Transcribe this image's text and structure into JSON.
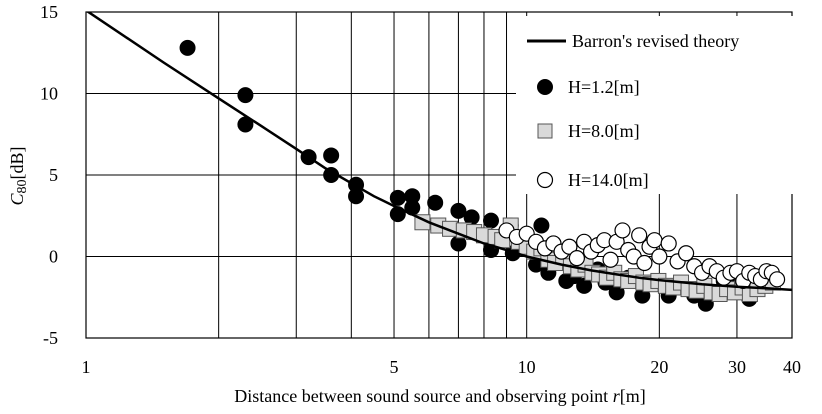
{
  "chart_data": {
    "type": "scatter",
    "xscale": "log",
    "xlim": [
      1,
      40
    ],
    "ylim": [
      -5,
      15
    ],
    "xticks": [
      1,
      5,
      10,
      20,
      30,
      40
    ],
    "xtick_labels": [
      "1",
      "5",
      "10",
      "20",
      "30",
      "40"
    ],
    "xgrid_values": [
      1,
      2,
      3,
      4,
      5,
      6,
      7,
      8,
      9,
      10,
      20,
      30,
      40
    ],
    "yticks": [
      -5,
      0,
      5,
      10,
      15
    ],
    "ytick_labels": [
      "-5",
      "0",
      "5",
      "10",
      "15"
    ],
    "xlabel": {
      "main": "Distance between sound source and observing point ",
      "var": "r",
      "unit": "[m]"
    },
    "ylabel": {
      "var": "C",
      "sub": "80",
      "unit": "[dB]"
    },
    "grid": true,
    "legend_position": "top-right",
    "series": [
      {
        "name": "Barron's revised theory",
        "marker": "line",
        "color": "#000000",
        "x": [
          1,
          1.5,
          2,
          2.5,
          3,
          3.5,
          4,
          4.5,
          5,
          6,
          7,
          8,
          9,
          10,
          12,
          14,
          16,
          18,
          20,
          25,
          30,
          35,
          40
        ],
        "y": [
          15.1,
          11.9,
          9.7,
          8.0,
          6.6,
          5.4,
          4.5,
          3.7,
          3.1,
          2.1,
          1.4,
          0.8,
          0.4,
          0.0,
          -0.5,
          -0.85,
          -1.1,
          -1.3,
          -1.45,
          -1.7,
          -1.85,
          -1.95,
          -2.05
        ]
      },
      {
        "name": "H=1.2[m]",
        "marker": "circle-filled",
        "color": "#000000",
        "x": [
          1.7,
          2.3,
          2.3,
          3.2,
          3.6,
          3.6,
          4.1,
          4.1,
          5.1,
          5.1,
          5.5,
          5.5,
          6.2,
          7.0,
          7.0,
          7.5,
          8.3,
          8.3,
          9.2,
          9.3,
          10.5,
          10.8,
          11.2,
          11.5,
          12.3,
          12.8,
          13.5,
          14.5,
          15.1,
          16.0,
          17.0,
          18.3,
          19.5,
          21.0,
          22.5,
          24.0,
          25.5,
          27.0,
          28.0,
          30.0,
          32.0,
          34.0
        ],
        "y": [
          12.8,
          9.9,
          8.1,
          6.1,
          6.2,
          5.0,
          4.4,
          3.7,
          3.6,
          2.6,
          3.7,
          3.0,
          3.3,
          2.8,
          0.8,
          2.4,
          2.2,
          0.4,
          1.9,
          0.2,
          -0.5,
          1.9,
          -1.0,
          0.8,
          -1.5,
          -1.2,
          -1.8,
          -0.8,
          -1.6,
          -2.2,
          -1.3,
          -2.4,
          -1.6,
          -2.4,
          -1.9,
          -2.4,
          -2.9,
          -2.2,
          -1.5,
          -1.7,
          -2.6,
          -1.7
        ]
      },
      {
        "name": "H=8.0[m]",
        "marker": "square",
        "color": "#d9d9d9",
        "x": [
          5.8,
          6.3,
          6.7,
          7.2,
          7.6,
          8.0,
          8.5,
          8.8,
          9.2,
          9.6,
          10.0,
          10.4,
          10.8,
          11.2,
          11.6,
          12.1,
          12.6,
          13.1,
          13.6,
          14.1,
          14.6,
          15.2,
          15.8,
          16.4,
          17.0,
          17.7,
          18.4,
          19.1,
          19.9,
          20.7,
          21.5,
          22.4,
          23.3,
          24.3,
          25.3,
          26.3,
          27.4,
          28.5,
          29.7,
          30.9,
          32.1,
          33.4,
          34.8,
          36.2
        ],
        "y": [
          2.1,
          1.9,
          1.7,
          1.6,
          1.5,
          1.3,
          1.2,
          1.0,
          1.9,
          0.9,
          0.6,
          0.3,
          0.5,
          -0.2,
          -0.4,
          0.0,
          -0.6,
          -0.8,
          -0.5,
          -1.0,
          -1.1,
          -1.3,
          -1.0,
          -1.4,
          -1.5,
          -1.2,
          -1.6,
          -1.7,
          -1.5,
          -1.8,
          -1.9,
          -1.6,
          -2.0,
          -2.1,
          -1.8,
          -2.2,
          -2.3,
          -2.0,
          -2.2,
          -1.9,
          -2.3,
          -2.0,
          -1.8,
          -1.6
        ]
      },
      {
        "name": "H=14.0[m]",
        "marker": "circle-open",
        "color": "#ffffff",
        "x": [
          9.0,
          9.5,
          10.0,
          10.5,
          11.0,
          11.5,
          12.0,
          12.5,
          13.0,
          13.5,
          14.0,
          14.5,
          15.0,
          15.5,
          16.0,
          16.5,
          17.0,
          17.5,
          18.0,
          18.5,
          19.0,
          19.5,
          20.0,
          21.0,
          22.0,
          23.0,
          24.0,
          25.0,
          26.0,
          27.0,
          28.0,
          29.0,
          30.0,
          31.0,
          32.0,
          33.0,
          34.0,
          35.0,
          36.0,
          37.0
        ],
        "y": [
          1.6,
          1.2,
          1.4,
          0.9,
          0.5,
          0.8,
          0.3,
          0.6,
          -0.1,
          0.9,
          0.3,
          0.7,
          1.0,
          -0.2,
          0.9,
          1.6,
          0.4,
          0.0,
          1.3,
          -0.4,
          0.6,
          1.0,
          0.0,
          0.8,
          -0.3,
          0.2,
          -0.6,
          -1.0,
          -0.6,
          -0.9,
          -1.3,
          -1.0,
          -0.9,
          -1.5,
          -1.0,
          -1.2,
          -1.4,
          -0.9,
          -1.0,
          -1.4
        ]
      }
    ]
  }
}
